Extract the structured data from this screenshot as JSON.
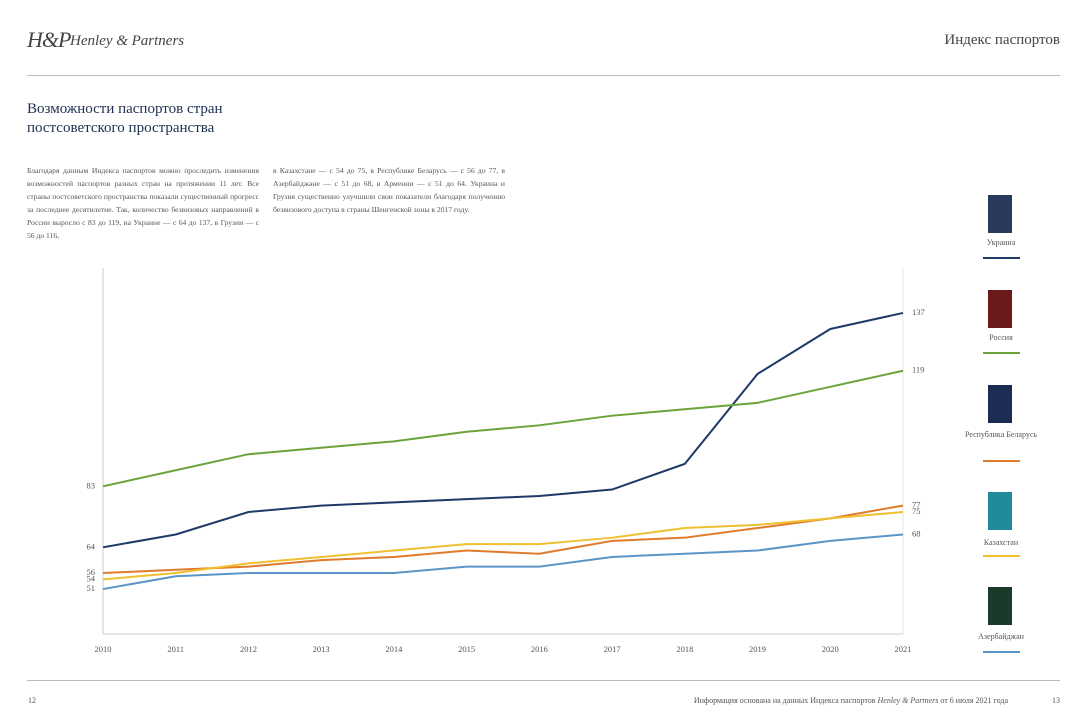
{
  "header": {
    "logo_mark": "H&P",
    "brand": "Henley & Partners",
    "section": "Индекс паспортов"
  },
  "title": [
    "Возможности паспортов стран",
    "постсоветского пространства"
  ],
  "paragraphs": [
    "Благодаря данным Индекса паспортов можно проследить изменения возможностей паспортов разных стран на протяжении 11 лет. Все страны постсоветского пространства показали существенный прогресс за последнее десятилетие. Так, количество безвизовых направлений в России выросло с 83 до 119, на Украине — с 64 до 137, в Грузии — с 56 до 116,",
    "в Казахстане — с 54 до 75, в Республике Беларусь — с 56 до 77, в Азербайджане — с 51 до 68, в Армении — с 51 до 64. Украина и Грузия существенно улучшили свои показатели благодаря получению безвизового доступа в страны Шенгенской зоны в 2017 году."
  ],
  "chart_data": {
    "type": "line",
    "x": [
      2010,
      2011,
      2012,
      2013,
      2014,
      2015,
      2016,
      2017,
      2018,
      2019,
      2020,
      2021
    ],
    "xlim": [
      2010,
      2021
    ],
    "xticks": [
      2010,
      2011,
      2012,
      2013,
      2014,
      2015,
      2016,
      2017,
      2018,
      2019,
      2020,
      2021
    ],
    "ylim": [
      37,
      151
    ],
    "series": [
      {
        "name": "Украина",
        "color": "#1f3a68",
        "values": [
          64,
          68,
          75,
          77,
          78,
          79,
          80,
          82,
          90,
          118,
          132,
          137
        ]
      },
      {
        "name": "Россия",
        "color": "#6aa43a",
        "values": [
          83,
          88,
          93,
          95,
          97,
          100,
          102,
          105,
          107,
          109,
          114,
          119
        ]
      },
      {
        "name": "Республика Беларусь",
        "color": "#e07b2c",
        "values": [
          56,
          57,
          58,
          60,
          61,
          63,
          62,
          66,
          67,
          70,
          73,
          77
        ]
      },
      {
        "name": "Казахстан",
        "color": "#f0c030",
        "values": [
          54,
          56,
          59,
          61,
          63,
          65,
          65,
          67,
          70,
          71,
          73,
          75
        ]
      },
      {
        "name": "Азербайджан",
        "color": "#5b95c8",
        "values": [
          51,
          55,
          56,
          56,
          56,
          58,
          58,
          61,
          62,
          63,
          66,
          68
        ]
      }
    ]
  },
  "footer": {
    "left_page": "12",
    "note_before": "Информация основана на данных Индекса паспортов ",
    "note_brand": "Henley & Partners",
    "note_after": " от 6 июля 2021 года",
    "right_page": "13"
  }
}
